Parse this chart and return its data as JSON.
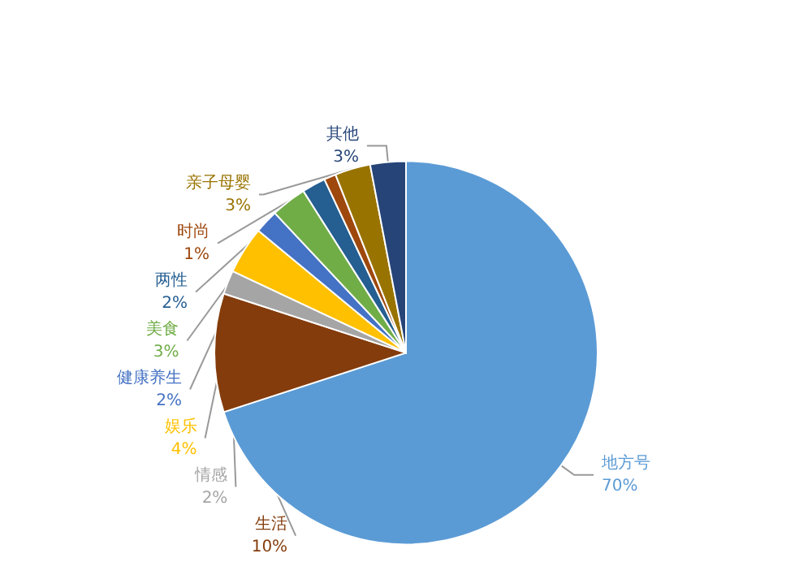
{
  "chart_data": {
    "type": "pie",
    "categories": [
      "地方号",
      "生活",
      "情感",
      "娱乐",
      "健康养生",
      "美食",
      "两性",
      "时尚",
      "亲子母婴",
      "其他"
    ],
    "values": [
      70,
      10,
      2,
      4,
      2,
      3,
      2,
      1,
      3,
      3
    ],
    "colors": [
      "#5b9bd5",
      "#843c0c",
      "#a5a5a5",
      "#ffc000",
      "#4472c4",
      "#70ad47",
      "#255e91",
      "#9e480e",
      "#997300",
      "#264478"
    ],
    "value_labels": [
      "70%",
      "10%",
      "2%",
      "4%",
      "2%",
      "3%",
      "2%",
      "1%",
      "3%",
      "3%"
    ],
    "legend": false
  }
}
